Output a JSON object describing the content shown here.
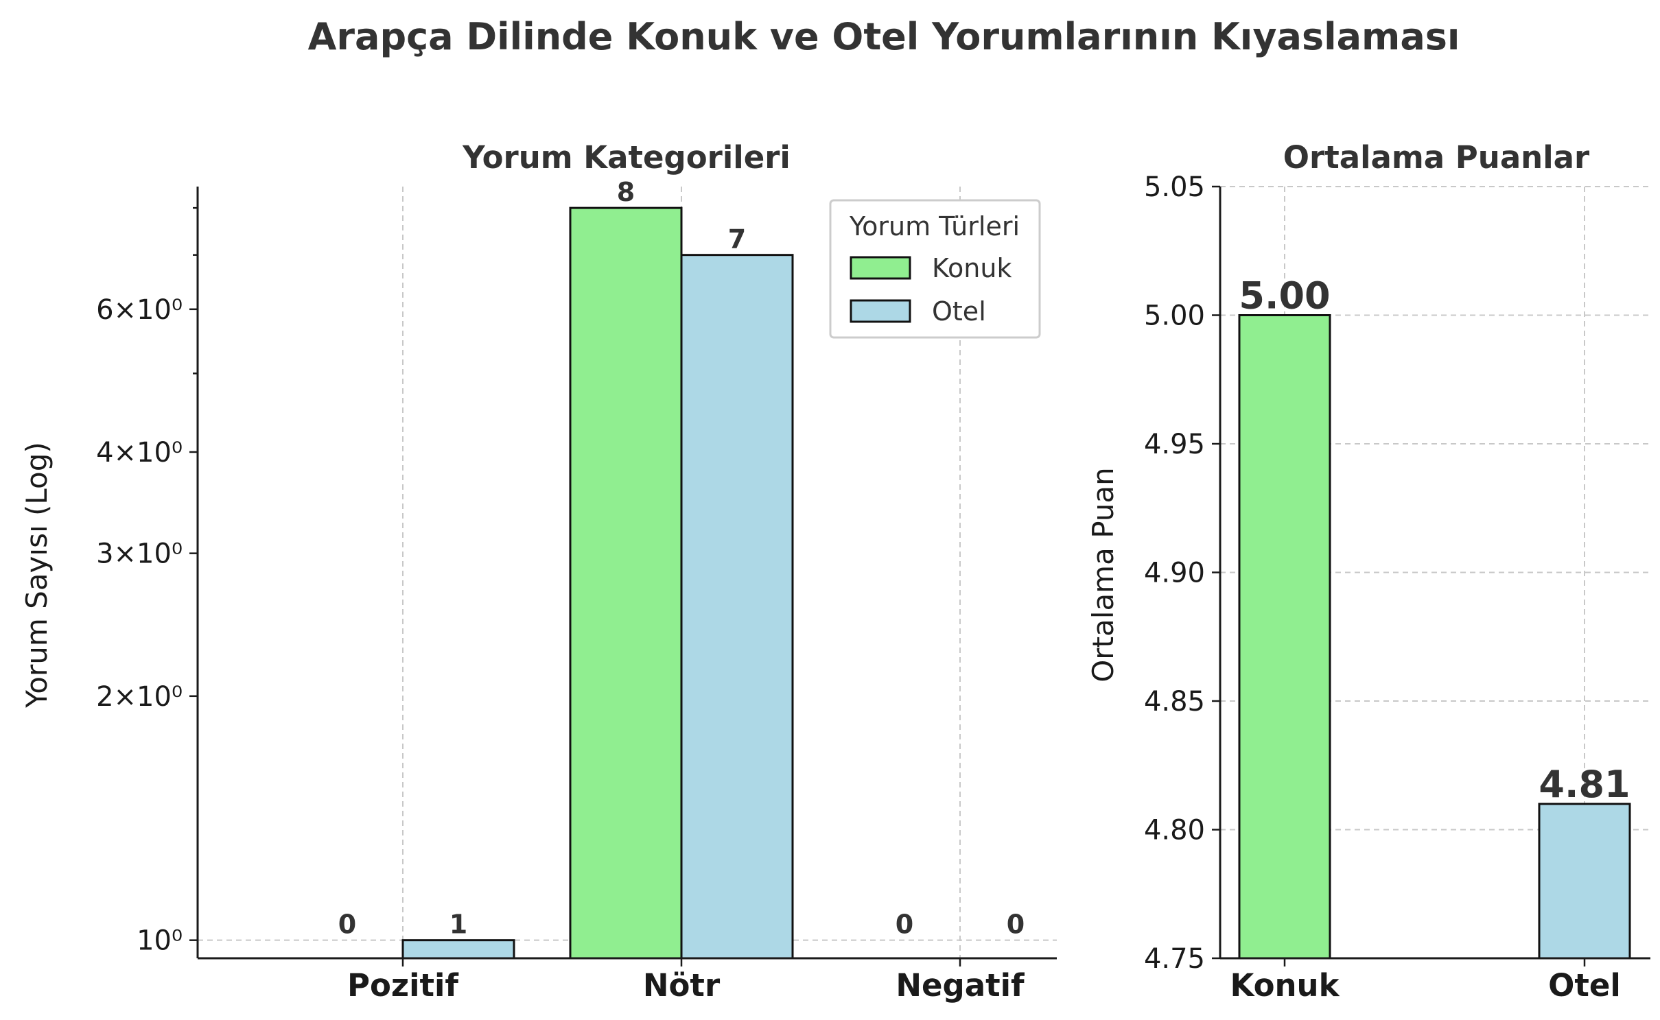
{
  "title": "Arapça Dilinde Konuk ve Otel Yorumlarının Kıyaslaması",
  "chart_data": [
    {
      "type": "bar",
      "title": "Yorum Kategorileri",
      "xlabel": "",
      "ylabel": "Yorum Sayısı (Log)",
      "yscale": "log",
      "ylim": [
        0.95,
        8.5
      ],
      "yticks": [
        1,
        2,
        3,
        4,
        6
      ],
      "ytick_labels": [
        "10⁰",
        "2×10⁰",
        "3×10⁰",
        "4×10⁰",
        "6×10⁰"
      ],
      "categories": [
        "Pozitif",
        "Nötr",
        "Negatif"
      ],
      "series": [
        {
          "name": "Konuk",
          "color": "#90ee90",
          "values": [
            0,
            8,
            0
          ],
          "labels": [
            "0",
            "8",
            "0"
          ]
        },
        {
          "name": "Otel",
          "color": "#add8e6",
          "values": [
            1,
            7,
            0
          ],
          "labels": [
            "1",
            "7",
            "0"
          ]
        }
      ],
      "legend": {
        "title": "Yorum Türleri",
        "position": "upper-right"
      },
      "grid": true
    },
    {
      "type": "bar",
      "title": "Ortalama Puanlar",
      "xlabel": "",
      "ylabel": "Ortalama Puan",
      "ylim": [
        4.75,
        5.05
      ],
      "yticks": [
        4.75,
        4.8,
        4.85,
        4.9,
        4.95,
        5.0,
        5.05
      ],
      "ytick_labels": [
        "4.75",
        "4.80",
        "4.85",
        "4.90",
        "4.95",
        "5.00",
        "5.05"
      ],
      "categories": [
        "Konuk",
        "Otel"
      ],
      "values": [
        5.0,
        4.81
      ],
      "labels": [
        "5.00",
        "4.81"
      ],
      "colors": [
        "#90ee90",
        "#add8e6"
      ],
      "grid": true
    }
  ]
}
